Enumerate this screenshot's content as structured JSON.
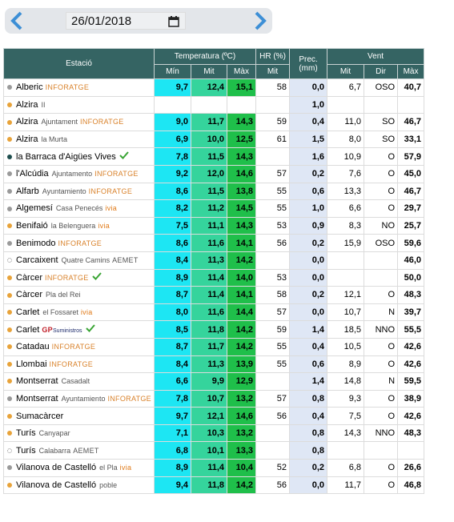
{
  "date": "26/01/2018",
  "table": {
    "header": {
      "station": "Estació",
      "temperature": "Temperatura (ºC)",
      "humidity": "HR (%)",
      "precipitation": "Prec. (mm)",
      "wind": "Vent",
      "sub": [
        "Mín",
        "Mit",
        "Màx",
        "Mit",
        "Mit",
        "Dir",
        "Màx"
      ]
    },
    "rows": [
      {
        "dot": "#9a9a9a",
        "name": "Alberic",
        "source": "INFORATGE",
        "source_color": "#d9822b",
        "min": "9,7",
        "mit": "12,4",
        "max": "15,1",
        "hr": "58",
        "prec": "0,0",
        "vent_mit": "6,7",
        "dir": "OSO",
        "vent_max": "40,7"
      },
      {
        "dot": "#e8a33a",
        "name": "Alzira",
        "place": "II",
        "prec": "1,0"
      },
      {
        "dot": "#e8a33a",
        "name": "Alzira",
        "place": "Ajuntament",
        "source": "INFORATGE",
        "source_color": "#d9822b",
        "min": "9,0",
        "mit": "11,7",
        "max": "14,3",
        "hr": "59",
        "prec": "0,4",
        "vent_mit": "11,0",
        "dir": "SO",
        "vent_max": "46,7"
      },
      {
        "dot": "#e8a33a",
        "name": "Alzira",
        "place": "la Murta",
        "min": "6,9",
        "mit": "10,0",
        "max": "12,5",
        "hr": "61",
        "prec": "1,5",
        "vent_mit": "8,0",
        "dir": "SO",
        "vent_max": "33,1"
      },
      {
        "dot": "#1e4d4d",
        "name": "la Barraca d'Aigües Vives",
        "check": true,
        "min": "7,8",
        "mit": "11,5",
        "max": "14,3",
        "prec": "1,6",
        "vent_mit": "10,9",
        "dir": "O",
        "vent_max": "57,9"
      },
      {
        "dot": "#9a9a9a",
        "name": "l'Alcúdia",
        "place": "Ajuntamento",
        "source": "INFORATGE",
        "source_color": "#d9822b",
        "min": "9,2",
        "mit": "12,0",
        "max": "14,6",
        "hr": "57",
        "prec": "0,2",
        "vent_mit": "7,6",
        "dir": "O",
        "vent_max": "45,0"
      },
      {
        "dot": "#9a9a9a",
        "name": "Alfarb",
        "place": "Ayuntamiento",
        "source": "INFORATGE",
        "source_color": "#d9822b",
        "min": "8,6",
        "mit": "11,5",
        "max": "13,8",
        "hr": "55",
        "prec": "0,6",
        "vent_mit": "13,3",
        "dir": "O",
        "vent_max": "46,7"
      },
      {
        "dot": "#9a9a9a",
        "name": "Algemesí",
        "place": "Casa Penecés",
        "source": "ivia",
        "source_color": "#e07b1a",
        "min": "8,2",
        "mit": "11,2",
        "max": "14,5",
        "hr": "55",
        "prec": "1,0",
        "vent_mit": "6,6",
        "dir": "O",
        "vent_max": "29,7"
      },
      {
        "dot": "#e8a33a",
        "name": "Benifaió",
        "place": "la Belenguera",
        "source": "ivia",
        "source_color": "#e07b1a",
        "min": "7,5",
        "mit": "11,1",
        "max": "14,3",
        "hr": "53",
        "prec": "0,9",
        "vent_mit": "8,3",
        "dir": "NO",
        "vent_max": "25,7"
      },
      {
        "dot": "#9a9a9a",
        "name": "Benimodo",
        "source": "INFORATGE",
        "source_color": "#d9822b",
        "min": "8,6",
        "mit": "11,6",
        "max": "14,1",
        "hr": "56",
        "prec": "0,2",
        "vent_mit": "15,9",
        "dir": "OSO",
        "vent_max": "59,6"
      },
      {
        "dot": "none",
        "name": "Carcaixent",
        "place": "Quatre Camins",
        "source": "AEMET",
        "source_color": "#555555",
        "min": "8,4",
        "mit": "11,3",
        "max": "14,2",
        "prec": "0,0",
        "vent_max": "46,0"
      },
      {
        "dot": "#e8a33a",
        "name": "Càrcer",
        "source": "INFORATGE",
        "source_color": "#d9822b",
        "check": true,
        "min": "8,9",
        "mit": "11,4",
        "max": "14,0",
        "hr": "53",
        "prec": "0,0",
        "vent_max": "50,0"
      },
      {
        "dot": "#e8a33a",
        "name": "Càrcer",
        "place": "Pla del Rei",
        "min": "8,7",
        "mit": "11,4",
        "max": "14,1",
        "hr": "58",
        "prec": "0,2",
        "vent_mit": "12,1",
        "dir": "O",
        "vent_max": "48,3"
      },
      {
        "dot": "#e8a33a",
        "name": "Carlet",
        "place": "el Fossaret",
        "source": "ivia",
        "source_color": "#e07b1a",
        "min": "8,0",
        "mit": "11,6",
        "max": "14,4",
        "hr": "57",
        "prec": "0,0",
        "vent_mit": "10,7",
        "dir": "N",
        "vent_max": "39,7"
      },
      {
        "dot": "#e8a33a",
        "name": "Carlet",
        "source": "GP",
        "source_color": "#c0202a",
        "source_note": "Suministros",
        "check": true,
        "min": "8,5",
        "mit": "11,8",
        "max": "14,2",
        "hr": "59",
        "prec": "1,4",
        "vent_mit": "18,5",
        "dir": "NNO",
        "vent_max": "55,5"
      },
      {
        "dot": "#e8a33a",
        "name": "Catadau",
        "source": "INFORATGE",
        "source_color": "#d9822b",
        "min": "8,7",
        "mit": "11,7",
        "max": "14,2",
        "hr": "55",
        "prec": "0,4",
        "vent_mit": "10,5",
        "dir": "O",
        "vent_max": "42,6"
      },
      {
        "dot": "#e8a33a",
        "name": "Llombai",
        "source": "INFORATGE",
        "source_color": "#d9822b",
        "min": "8,4",
        "mit": "11,3",
        "max": "13,9",
        "hr": "55",
        "prec": "0,6",
        "vent_mit": "8,9",
        "dir": "O",
        "vent_max": "42,6"
      },
      {
        "dot": "#e8a33a",
        "name": "Montserrat",
        "place": "Casadalt",
        "min": "6,6",
        "mit": "9,9",
        "max": "12,9",
        "prec": "1,4",
        "vent_mit": "14,8",
        "dir": "N",
        "vent_max": "59,5"
      },
      {
        "dot": "#9a9a9a",
        "name": "Montserrat",
        "place": "Ayuntamiento",
        "source": "INFORATGE",
        "source_color": "#d9822b",
        "min": "7,8",
        "mit": "10,7",
        "max": "13,2",
        "hr": "57",
        "prec": "0,8",
        "vent_mit": "9,3",
        "dir": "O",
        "vent_max": "38,9"
      },
      {
        "dot": "#e8a33a",
        "name": "Sumacàrcer",
        "min": "9,7",
        "mit": "12,1",
        "max": "14,6",
        "hr": "56",
        "prec": "0,4",
        "vent_mit": "7,5",
        "dir": "O",
        "vent_max": "42,6"
      },
      {
        "dot": "#e8a33a",
        "name": "Turís",
        "place": "Canyapar",
        "min": "7,1",
        "mit": "10,3",
        "max": "13,2",
        "prec": "0,8",
        "vent_mit": "14,3",
        "dir": "NNO",
        "vent_max": "48,3"
      },
      {
        "dot": "none",
        "name": "Turís",
        "place": "Calabarra",
        "source": "AEMET",
        "source_color": "#555555",
        "min": "6,8",
        "mit": "10,1",
        "max": "13,3",
        "prec": "0,8"
      },
      {
        "dot": "#9a9a9a",
        "name": "Vilanova de Castelló",
        "place": "el Pla",
        "source": "ivia",
        "source_color": "#e07b1a",
        "min": "8,9",
        "mit": "11,4",
        "max": "10,4",
        "hr": "52",
        "prec": "0,2",
        "vent_mit": "6,8",
        "dir": "O",
        "vent_max": "26,6"
      },
      {
        "dot": "#e8a33a",
        "name": "Vilanova de Castelló",
        "place": "poble",
        "min": "9,4",
        "mit": "11,8",
        "max": "14,2",
        "hr": "56",
        "prec": "0,0",
        "vent_mit": "11,7",
        "dir": "O",
        "vent_max": "46,8"
      }
    ]
  }
}
